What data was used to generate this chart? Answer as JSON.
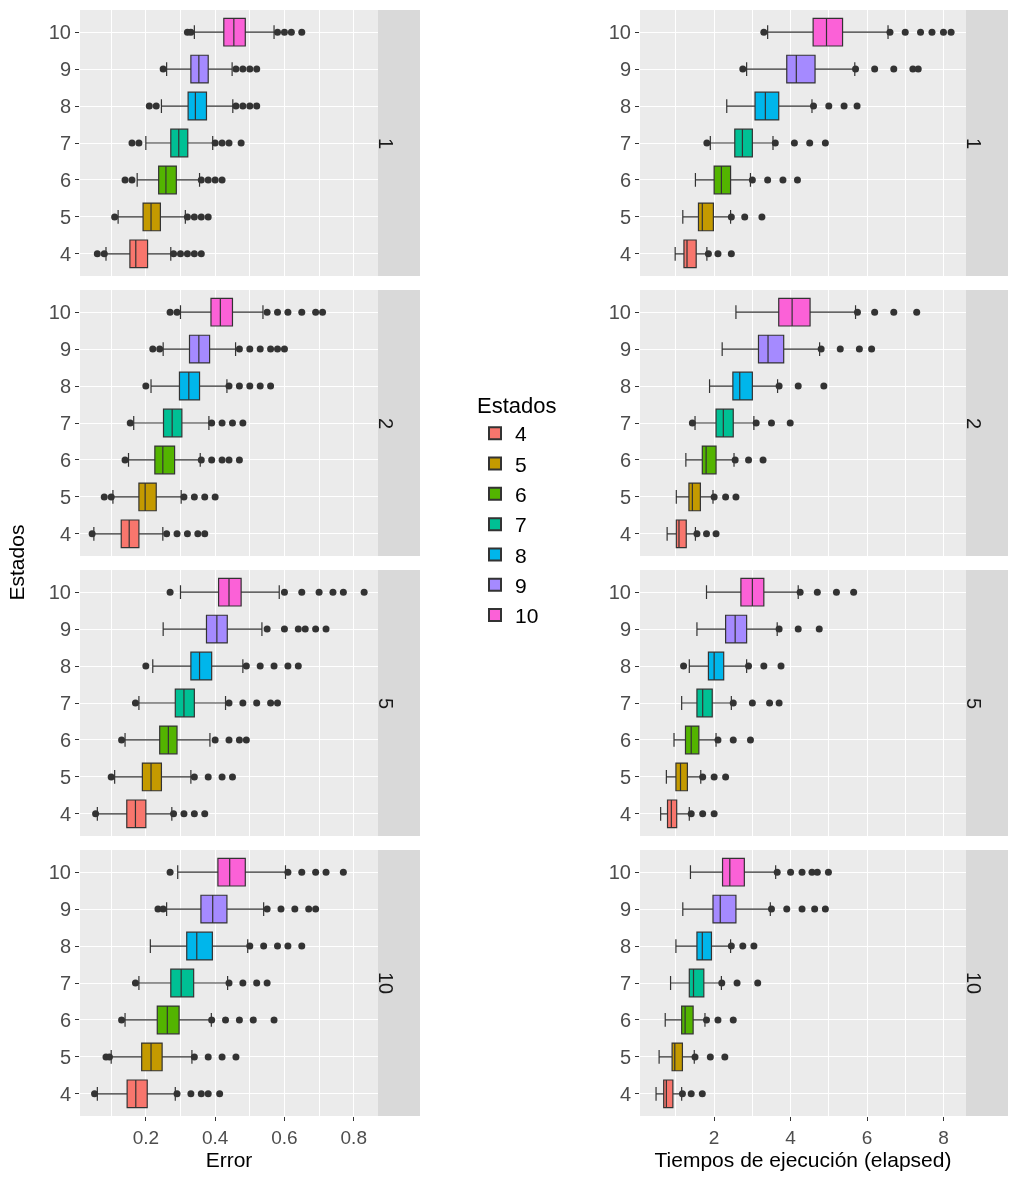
{
  "chart_data": [
    {
      "type": "box",
      "orientation": "horizontal",
      "title": "1",
      "legend": "right",
      "legend_title": "Estados",
      "grid": true,
      "tick_labels": "y",
      "categories": [
        "10",
        "9",
        "8",
        "7",
        "6",
        "5",
        "4"
      ],
      "xlim": [
        0.01,
        0.87
      ],
      "xticks": [
        {
          "value": 0.1,
          "label": null
        },
        0.2,
        {
          "value": 0.3,
          "label": null
        },
        0.4,
        {
          "value": 0.5,
          "label": null
        },
        0.6,
        {
          "value": 0.7,
          "label": null
        },
        0.8
      ],
      "series": [
        {
          "name": "4",
          "color": "#f8766d",
          "boxes": [
            null,
            null,
            null,
            null,
            null,
            null,
            {
              "low": 0.085,
              "q1": 0.154,
              "median": 0.171,
              "q3": 0.205,
              "high": 0.272,
              "outliers": [
                0.06,
                0.08,
                0.28,
                0.3,
                0.32,
                0.34,
                0.36
              ]
            }
          ]
        },
        {
          "name": "5",
          "color": "#c49a00",
          "boxes": [
            null,
            null,
            null,
            null,
            null,
            {
              "low": 0.12,
              "q1": 0.192,
              "median": 0.215,
              "q3": 0.242,
              "high": 0.314,
              "outliers": [
                0.11,
                0.32,
                0.34,
                0.36,
                0.38
              ]
            },
            null
          ]
        },
        {
          "name": "6",
          "color": "#53b400",
          "boxes": [
            null,
            null,
            null,
            null,
            {
              "low": 0.175,
              "q1": 0.237,
              "median": 0.258,
              "q3": 0.288,
              "high": 0.355,
              "outliers": [
                0.14,
                0.16,
                0.36,
                0.38,
                0.4,
                0.42
              ]
            },
            null,
            null
          ]
        },
        {
          "name": "7",
          "color": "#00c094",
          "boxes": [
            null,
            null,
            null,
            {
              "low": 0.2,
              "q1": 0.272,
              "median": 0.295,
              "q3": 0.321,
              "high": 0.393,
              "outliers": [
                0.16,
                0.18,
                0.4,
                0.42,
                0.44,
                0.475
              ]
            },
            null,
            null,
            null
          ]
        },
        {
          "name": "8",
          "color": "#00b6eb",
          "boxes": [
            null,
            null,
            {
              "low": 0.245,
              "q1": 0.322,
              "median": 0.343,
              "q3": 0.375,
              "high": 0.451,
              "outliers": [
                0.21,
                0.23,
                0.46,
                0.48,
                0.5,
                0.52
              ]
            },
            null,
            null,
            null,
            null
          ]
        },
        {
          "name": "9",
          "color": "#a58aff",
          "boxes": [
            null,
            {
              "low": 0.26,
              "q1": 0.33,
              "median": 0.353,
              "q3": 0.38,
              "high": 0.449,
              "outliers": [
                0.25,
                0.46,
                0.48,
                0.5,
                0.52
              ]
            },
            null,
            null,
            null,
            null,
            null
          ]
        },
        {
          "name": "10",
          "color": "#fb61d7",
          "boxes": [
            {
              "low": 0.34,
              "q1": 0.425,
              "median": 0.454,
              "q3": 0.487,
              "high": 0.57,
              "outliers": [
                0.32,
                0.33,
                0.58,
                0.6,
                0.62,
                0.65
              ]
            },
            null,
            null,
            null,
            null,
            null,
            null
          ]
        }
      ]
    },
    {
      "type": "box",
      "orientation": "horizontal",
      "title": "1",
      "grid": true,
      "tick_labels": "y",
      "categories": [
        "10",
        "9",
        "8",
        "7",
        "6",
        "5",
        "4"
      ],
      "xlim": [
        0.06,
        8.59
      ],
      "xticks": [
        {
          "value": 1,
          "label": null
        },
        2,
        {
          "value": 3,
          "label": null
        },
        4,
        {
          "value": 5,
          "label": null
        },
        6,
        {
          "value": 7,
          "label": null
        },
        8
      ],
      "series": [
        {
          "color": "#f8766d",
          "boxes": [
            null,
            null,
            null,
            null,
            null,
            null,
            {
              "low": 0.98,
              "q1": 1.21,
              "median": 1.29,
              "q3": 1.53,
              "high": 1.81,
              "outliers": [
                1.85,
                2.1,
                2.45
              ]
            }
          ]
        },
        {
          "color": "#c49a00",
          "boxes": [
            null,
            null,
            null,
            null,
            null,
            {
              "low": 1.18,
              "q1": 1.59,
              "median": 1.69,
              "q3": 1.98,
              "high": 2.43,
              "outliers": [
                2.45,
                2.8,
                3.25
              ]
            },
            null
          ]
        },
        {
          "color": "#53b400",
          "boxes": [
            null,
            null,
            null,
            null,
            {
              "low": 1.51,
              "q1": 2.0,
              "median": 2.19,
              "q3": 2.43,
              "high": 2.95,
              "outliers": [
                3.0,
                3.4,
                3.8,
                4.18
              ]
            },
            null,
            null
          ]
        },
        {
          "color": "#00c094",
          "boxes": [
            null,
            null,
            null,
            {
              "low": 1.9,
              "q1": 2.54,
              "median": 2.74,
              "q3": 3.0,
              "high": 3.54,
              "outliers": [
                1.81,
                3.6,
                4.1,
                4.5,
                4.91
              ]
            },
            null,
            null,
            null
          ]
        },
        {
          "color": "#00b6eb",
          "boxes": [
            null,
            null,
            {
              "low": 2.33,
              "q1": 3.07,
              "median": 3.34,
              "q3": 3.69,
              "high": 4.56,
              "outliers": [
                4.6,
                5.0,
                5.4,
                5.74
              ]
            },
            null,
            null,
            null,
            null
          ]
        },
        {
          "color": "#a58aff",
          "boxes": [
            null,
            {
              "low": 2.85,
              "q1": 3.9,
              "median": 4.15,
              "q3": 4.64,
              "high": 5.68,
              "outliers": [
                2.75,
                5.7,
                6.2,
                6.7,
                7.2,
                7.34
              ]
            },
            null,
            null,
            null,
            null,
            null
          ]
        },
        {
          "color": "#fb61d7",
          "boxes": [
            {
              "low": 3.4,
              "q1": 4.59,
              "median": 4.94,
              "q3": 5.36,
              "high": 6.55,
              "outliers": [
                3.3,
                6.6,
                7.0,
                7.4,
                7.7,
                8.0,
                8.2
              ]
            },
            null,
            null,
            null,
            null,
            null,
            null
          ]
        }
      ]
    },
    {
      "type": "box",
      "orientation": "horizontal",
      "title": "2",
      "ylabel": "Estados",
      "grid": true,
      "tick_labels": "y",
      "categories": [
        "10",
        "9",
        "8",
        "7",
        "6",
        "5",
        "4"
      ],
      "xlim": [
        0.01,
        0.87
      ],
      "xticks": [
        {
          "value": 0.1,
          "label": null
        },
        0.2,
        {
          "value": 0.3,
          "label": null
        },
        0.4,
        {
          "value": 0.5,
          "label": null
        },
        0.6,
        {
          "value": 0.7,
          "label": null
        },
        0.8
      ],
      "series": [
        {
          "color": "#f8766d",
          "boxes": [
            null,
            null,
            null,
            null,
            null,
            null,
            {
              "low": 0.05,
              "q1": 0.129,
              "median": 0.152,
              "q3": 0.18,
              "high": 0.249,
              "outliers": [
                0.045,
                0.26,
                0.29,
                0.32,
                0.35,
                0.37
              ]
            }
          ]
        },
        {
          "color": "#c49a00",
          "boxes": [
            null,
            null,
            null,
            null,
            null,
            {
              "low": 0.105,
              "q1": 0.18,
              "median": 0.198,
              "q3": 0.23,
              "high": 0.302,
              "outliers": [
                0.08,
                0.1,
                0.31,
                0.34,
                0.37,
                0.4
              ]
            },
            null
          ]
        },
        {
          "color": "#53b400",
          "boxes": [
            null,
            null,
            null,
            null,
            {
              "low": 0.15,
              "q1": 0.226,
              "median": 0.249,
              "q3": 0.283,
              "high": 0.357,
              "outliers": [
                0.14,
                0.36,
                0.39,
                0.42,
                0.44,
                0.47
              ]
            },
            null,
            null
          ]
        },
        {
          "color": "#00c094",
          "boxes": [
            null,
            null,
            null,
            {
              "low": 0.165,
              "q1": 0.251,
              "median": 0.276,
              "q3": 0.304,
              "high": 0.382,
              "outliers": [
                0.155,
                0.39,
                0.42,
                0.45,
                0.48
              ]
            },
            null,
            null,
            null
          ]
        },
        {
          "color": "#00b6eb",
          "boxes": [
            null,
            null,
            {
              "low": 0.215,
              "q1": 0.297,
              "median": 0.324,
              "q3": 0.355,
              "high": 0.434,
              "outliers": [
                0.2,
                0.44,
                0.47,
                0.5,
                0.53,
                0.56
              ]
            },
            null,
            null,
            null,
            null
          ]
        },
        {
          "color": "#a58aff",
          "boxes": [
            null,
            {
              "low": 0.25,
              "q1": 0.326,
              "median": 0.353,
              "q3": 0.384,
              "high": 0.459,
              "outliers": [
                0.22,
                0.24,
                0.47,
                0.5,
                0.53,
                0.56,
                0.58,
                0.6
              ]
            },
            null,
            null,
            null,
            null,
            null
          ]
        },
        {
          "color": "#fb61d7",
          "boxes": [
            {
              "low": 0.3,
              "q1": 0.388,
              "median": 0.415,
              "q3": 0.45,
              "high": 0.538,
              "outliers": [
                0.27,
                0.29,
                0.55,
                0.58,
                0.61,
                0.65,
                0.69,
                0.71
              ]
            },
            null,
            null,
            null,
            null,
            null,
            null
          ]
        }
      ]
    },
    {
      "type": "box",
      "orientation": "horizontal",
      "title": "2",
      "grid": true,
      "tick_labels": "y",
      "categories": [
        "10",
        "9",
        "8",
        "7",
        "6",
        "5",
        "4"
      ],
      "xlim": [
        0.06,
        8.59
      ],
      "xticks": [
        {
          "value": 1,
          "label": null
        },
        2,
        {
          "value": 3,
          "label": null
        },
        4,
        {
          "value": 5,
          "label": null
        },
        6,
        {
          "value": 7,
          "label": null
        },
        8
      ],
      "series": [
        {
          "color": "#f8766d",
          "boxes": [
            null,
            null,
            null,
            null,
            null,
            null,
            {
              "low": 0.77,
              "q1": 1.01,
              "median": 1.08,
              "q3": 1.27,
              "high": 1.51,
              "outliers": [
                1.55,
                1.8,
                2.05
              ]
            }
          ]
        },
        {
          "color": "#c49a00",
          "boxes": [
            null,
            null,
            null,
            null,
            null,
            {
              "low": 1.01,
              "q1": 1.34,
              "median": 1.43,
              "q3": 1.64,
              "high": 1.97,
              "outliers": [
                2.0,
                2.3,
                2.57
              ]
            },
            null
          ]
        },
        {
          "color": "#53b400",
          "boxes": [
            null,
            null,
            null,
            null,
            {
              "low": 1.26,
              "q1": 1.69,
              "median": 1.79,
              "q3": 2.05,
              "high": 2.52,
              "outliers": [
                2.55,
                2.9,
                3.28
              ]
            },
            null,
            null
          ]
        },
        {
          "color": "#00c094",
          "boxes": [
            null,
            null,
            null,
            {
              "low": 1.5,
              "q1": 2.05,
              "median": 2.24,
              "q3": 2.5,
              "high": 3.04,
              "outliers": [
                1.43,
                3.1,
                3.5,
                3.99
              ]
            },
            null,
            null,
            null
          ]
        },
        {
          "color": "#00b6eb",
          "boxes": [
            null,
            null,
            {
              "low": 1.88,
              "q1": 2.49,
              "median": 2.67,
              "q3": 3.0,
              "high": 3.66,
              "outliers": [
                3.7,
                4.2,
                4.87
              ]
            },
            null,
            null,
            null,
            null
          ]
        },
        {
          "color": "#a58aff",
          "boxes": [
            null,
            {
              "low": 2.21,
              "q1": 3.16,
              "median": 3.41,
              "q3": 3.82,
              "high": 4.76,
              "outliers": [
                4.8,
                5.3,
                5.8,
                6.12
              ]
            },
            null,
            null,
            null,
            null,
            null
          ]
        },
        {
          "color": "#fb61d7",
          "boxes": [
            {
              "low": 2.57,
              "q1": 3.69,
              "median": 4.04,
              "q3": 4.51,
              "high": 5.7,
              "outliers": [
                5.75,
                6.2,
                6.7,
                7.3
              ]
            },
            null,
            null,
            null,
            null,
            null,
            null
          ]
        }
      ]
    },
    {
      "type": "box",
      "orientation": "horizontal",
      "title": "5",
      "grid": true,
      "tick_labels": "y",
      "categories": [
        "10",
        "9",
        "8",
        "7",
        "6",
        "5",
        "4"
      ],
      "xlim": [
        0.01,
        0.87
      ],
      "xticks": [
        {
          "value": 0.1,
          "label": null
        },
        0.2,
        {
          "value": 0.3,
          "label": null
        },
        0.4,
        {
          "value": 0.5,
          "label": null
        },
        0.6,
        {
          "value": 0.7,
          "label": null
        },
        0.8
      ],
      "series": [
        {
          "color": "#f8766d",
          "boxes": [
            null,
            null,
            null,
            null,
            null,
            null,
            {
              "low": 0.06,
              "q1": 0.145,
              "median": 0.17,
              "q3": 0.2,
              "high": 0.275,
              "outliers": [
                0.055,
                0.28,
                0.31,
                0.34,
                0.37
              ]
            }
          ]
        },
        {
          "color": "#c49a00",
          "boxes": [
            null,
            null,
            null,
            null,
            null,
            {
              "low": 0.11,
              "q1": 0.19,
              "median": 0.215,
              "q3": 0.245,
              "high": 0.33,
              "outliers": [
                0.1,
                0.34,
                0.38,
                0.42,
                0.45
              ]
            },
            null
          ]
        },
        {
          "color": "#53b400",
          "boxes": [
            null,
            null,
            null,
            null,
            {
              "low": 0.14,
              "q1": 0.24,
              "median": 0.265,
              "q3": 0.29,
              "high": 0.385,
              "outliers": [
                0.13,
                0.4,
                0.44,
                0.47,
                0.49
              ]
            },
            null,
            null
          ]
        },
        {
          "color": "#00c094",
          "boxes": [
            null,
            null,
            null,
            {
              "low": 0.18,
              "q1": 0.285,
              "median": 0.31,
              "q3": 0.34,
              "high": 0.43,
              "outliers": [
                0.17,
                0.44,
                0.48,
                0.52,
                0.56,
                0.58
              ]
            },
            null,
            null,
            null
          ]
        },
        {
          "color": "#00b6eb",
          "boxes": [
            null,
            null,
            {
              "low": 0.22,
              "q1": 0.33,
              "median": 0.355,
              "q3": 0.39,
              "high": 0.48,
              "outliers": [
                0.2,
                0.49,
                0.53,
                0.57,
                0.61,
                0.64
              ]
            },
            null,
            null,
            null,
            null
          ]
        },
        {
          "color": "#a58aff",
          "boxes": [
            null,
            {
              "low": 0.25,
              "q1": 0.375,
              "median": 0.405,
              "q3": 0.435,
              "high": 0.535,
              "outliers": [
                0.55,
                0.6,
                0.64,
                0.66,
                0.69,
                0.72
              ]
            },
            null,
            null,
            null,
            null,
            null
          ]
        },
        {
          "color": "#fb61d7",
          "boxes": [
            {
              "low": 0.3,
              "q1": 0.41,
              "median": 0.44,
              "q3": 0.475,
              "high": 0.585,
              "outliers": [
                0.27,
                0.6,
                0.65,
                0.7,
                0.74,
                0.77,
                0.83
              ]
            },
            null,
            null,
            null,
            null,
            null,
            null
          ]
        }
      ]
    },
    {
      "type": "box",
      "orientation": "horizontal",
      "title": "5",
      "grid": true,
      "tick_labels": "y",
      "categories": [
        "10",
        "9",
        "8",
        "7",
        "6",
        "5",
        "4"
      ],
      "xlim": [
        0.06,
        8.59
      ],
      "xticks": [
        {
          "value": 1,
          "label": null
        },
        2,
        {
          "value": 3,
          "label": null
        },
        4,
        {
          "value": 5,
          "label": null
        },
        6,
        {
          "value": 7,
          "label": null
        },
        8
      ],
      "series": [
        {
          "color": "#f8766d",
          "boxes": [
            null,
            null,
            null,
            null,
            null,
            null,
            {
              "low": 0.6,
              "q1": 0.78,
              "median": 0.88,
              "q3": 1.02,
              "high": 1.35,
              "outliers": [
                1.4,
                1.7,
                2.0
              ]
            }
          ]
        },
        {
          "color": "#c49a00",
          "boxes": [
            null,
            null,
            null,
            null,
            null,
            {
              "low": 0.75,
              "q1": 1.0,
              "median": 1.12,
              "q3": 1.3,
              "high": 1.65,
              "outliers": [
                1.7,
                2.0,
                2.3
              ]
            },
            null
          ]
        },
        {
          "color": "#53b400",
          "boxes": [
            null,
            null,
            null,
            null,
            {
              "low": 0.95,
              "q1": 1.25,
              "median": 1.4,
              "q3": 1.6,
              "high": 2.05,
              "outliers": [
                2.1,
                2.5,
                2.95
              ]
            },
            null,
            null
          ]
        },
        {
          "color": "#00c094",
          "boxes": [
            null,
            null,
            null,
            {
              "low": 1.15,
              "q1": 1.55,
              "median": 1.7,
              "q3": 1.95,
              "high": 2.45,
              "outliers": [
                2.5,
                3.0,
                3.45,
                3.7
              ]
            },
            null,
            null,
            null
          ]
        },
        {
          "color": "#00b6eb",
          "boxes": [
            null,
            null,
            {
              "low": 1.35,
              "q1": 1.85,
              "median": 2.0,
              "q3": 2.25,
              "high": 2.85,
              "outliers": [
                1.2,
                2.9,
                3.3,
                3.75
              ]
            },
            null,
            null,
            null,
            null
          ]
        },
        {
          "color": "#a58aff",
          "boxes": [
            null,
            {
              "low": 1.55,
              "q1": 2.3,
              "median": 2.55,
              "q3": 2.85,
              "high": 3.65,
              "outliers": [
                3.7,
                4.2,
                4.75
              ]
            },
            null,
            null,
            null,
            null,
            null
          ]
        },
        {
          "color": "#fb61d7",
          "boxes": [
            {
              "low": 1.8,
              "q1": 2.7,
              "median": 3.0,
              "q3": 3.3,
              "high": 4.2,
              "outliers": [
                4.25,
                4.7,
                5.2,
                5.65
              ]
            },
            null,
            null,
            null,
            null,
            null,
            null
          ]
        }
      ]
    },
    {
      "type": "box",
      "orientation": "horizontal",
      "title": "10",
      "xlabel": "Error",
      "grid": true,
      "categories": [
        "10",
        "9",
        "8",
        "7",
        "6",
        "5",
        "4"
      ],
      "xlim": [
        0.01,
        0.87
      ],
      "xticks": [
        {
          "value": 0.1,
          "label": null
        },
        0.2,
        {
          "value": 0.3,
          "label": null
        },
        0.4,
        {
          "value": 0.5,
          "label": null
        },
        0.6,
        {
          "value": 0.7,
          "label": null
        },
        0.8
      ],
      "series": [
        {
          "color": "#f8766d",
          "boxes": [
            null,
            null,
            null,
            null,
            null,
            null,
            {
              "low": 0.06,
              "q1": 0.146,
              "median": 0.171,
              "q3": 0.204,
              "high": 0.285,
              "outliers": [
                0.052,
                0.29,
                0.33,
                0.36,
                0.38,
                0.413
              ]
            }
          ]
        },
        {
          "color": "#c49a00",
          "boxes": [
            null,
            null,
            null,
            null,
            null,
            {
              "low": 0.1,
              "q1": 0.188,
              "median": 0.215,
              "q3": 0.247,
              "high": 0.333,
              "outliers": [
                0.085,
                0.095,
                0.34,
                0.38,
                0.42,
                0.46
              ]
            },
            null
          ]
        },
        {
          "color": "#53b400",
          "boxes": [
            null,
            null,
            null,
            null,
            {
              "low": 0.14,
              "q1": 0.233,
              "median": 0.262,
              "q3": 0.296,
              "high": 0.389,
              "outliers": [
                0.13,
                0.39,
                0.43,
                0.47,
                0.51,
                0.57
              ]
            },
            null,
            null
          ]
        },
        {
          "color": "#00c094",
          "boxes": [
            null,
            null,
            null,
            {
              "low": 0.18,
              "q1": 0.272,
              "median": 0.302,
              "q3": 0.338,
              "high": 0.436,
              "outliers": [
                0.17,
                0.44,
                0.48,
                0.52,
                0.55
              ]
            },
            null,
            null,
            null
          ]
        },
        {
          "color": "#00b6eb",
          "boxes": [
            null,
            null,
            {
              "low": 0.213,
              "q1": 0.318,
              "median": 0.347,
              "q3": 0.392,
              "high": 0.494,
              "outliers": [
                0.5,
                0.54,
                0.58,
                0.61,
                0.65
              ]
            },
            null,
            null,
            null,
            null
          ]
        },
        {
          "color": "#a58aff",
          "boxes": [
            null,
            {
              "low": 0.26,
              "q1": 0.359,
              "median": 0.393,
              "q3": 0.434,
              "high": 0.54,
              "outliers": [
                0.235,
                0.25,
                0.55,
                0.59,
                0.63,
                0.67,
                0.69
              ]
            },
            null,
            null,
            null,
            null,
            null
          ]
        },
        {
          "color": "#fb61d7",
          "boxes": [
            {
              "low": 0.292,
              "q1": 0.408,
              "median": 0.442,
              "q3": 0.487,
              "high": 0.603,
              "outliers": [
                0.27,
                0.61,
                0.65,
                0.69,
                0.72,
                0.77
              ]
            },
            null,
            null,
            null,
            null,
            null,
            null
          ]
        }
      ]
    },
    {
      "type": "box",
      "orientation": "horizontal",
      "title": "10",
      "xlabel": "Tiempos de ejecución (elapsed)",
      "grid": true,
      "categories": [
        "10",
        "9",
        "8",
        "7",
        "6",
        "5",
        "4"
      ],
      "xlim": [
        0.06,
        8.59
      ],
      "xticks": [
        {
          "value": 1,
          "label": null
        },
        2,
        {
          "value": 3,
          "label": null
        },
        4,
        {
          "value": 5,
          "label": null
        },
        6,
        {
          "value": 7,
          "label": null
        },
        8
      ],
      "series": [
        {
          "color": "#f8766d",
          "boxes": [
            null,
            null,
            null,
            null,
            null,
            null,
            {
              "low": 0.48,
              "q1": 0.68,
              "median": 0.75,
              "q3": 0.92,
              "high": 1.15,
              "outliers": [
                1.17,
                1.4,
                1.69
              ]
            }
          ]
        },
        {
          "color": "#c49a00",
          "boxes": [
            null,
            null,
            null,
            null,
            null,
            {
              "low": 0.56,
              "q1": 0.9,
              "median": 0.97,
              "q3": 1.17,
              "high": 1.48,
              "outliers": [
                1.5,
                1.9,
                2.28
              ]
            },
            null
          ]
        },
        {
          "color": "#53b400",
          "boxes": [
            null,
            null,
            null,
            null,
            {
              "low": 0.72,
              "q1": 1.15,
              "median": 1.24,
              "q3": 1.45,
              "high": 1.76,
              "outliers": [
                1.8,
                2.1,
                2.5
              ]
            },
            null,
            null
          ]
        },
        {
          "color": "#00c094",
          "boxes": [
            null,
            null,
            null,
            {
              "low": 0.86,
              "q1": 1.35,
              "median": 1.46,
              "q3": 1.73,
              "high": 2.19,
              "outliers": [
                2.2,
                2.6,
                3.14
              ]
            },
            null,
            null,
            null
          ]
        },
        {
          "color": "#00b6eb",
          "boxes": [
            null,
            null,
            {
              "low": 1.0,
              "q1": 1.55,
              "median": 1.69,
              "q3": 1.93,
              "high": 2.43,
              "outliers": [
                2.45,
                2.75,
                3.04
              ]
            },
            null,
            null,
            null,
            null
          ]
        },
        {
          "color": "#a58aff",
          "boxes": [
            null,
            {
              "low": 1.18,
              "q1": 1.97,
              "median": 2.16,
              "q3": 2.57,
              "high": 3.47,
              "outliers": [
                3.5,
                3.9,
                4.3,
                4.63,
                4.91
              ]
            },
            null,
            null,
            null,
            null,
            null
          ]
        },
        {
          "color": "#fb61d7",
          "boxes": [
            {
              "low": 1.38,
              "q1": 2.22,
              "median": 2.41,
              "q3": 2.79,
              "high": 3.61,
              "outliers": [
                3.65,
                4.0,
                4.3,
                4.56,
                4.7,
                4.99
              ]
            },
            null,
            null,
            null,
            null,
            null,
            null
          ]
        }
      ]
    }
  ]
}
